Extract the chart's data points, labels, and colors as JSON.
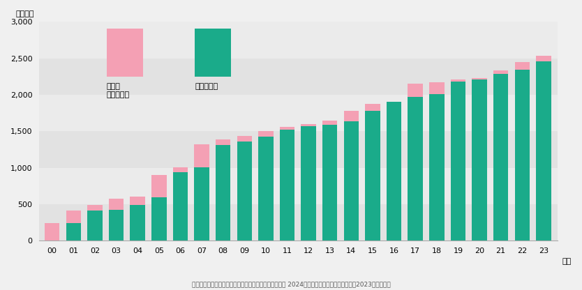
{
  "years": [
    "00",
    "01",
    "02",
    "03",
    "04",
    "05",
    "06",
    "07",
    "08",
    "09",
    "10",
    "11",
    "12",
    "13",
    "14",
    "15",
    "16",
    "17",
    "18",
    "19",
    "20",
    "21",
    "22",
    "23"
  ],
  "green_values": [
    0,
    240,
    410,
    420,
    490,
    590,
    940,
    1010,
    1310,
    1360,
    1430,
    1520,
    1570,
    1590,
    1640,
    1780,
    1900,
    1970,
    2010,
    2180,
    2210,
    2290,
    2340,
    2460
  ],
  "pink_values": [
    240,
    175,
    80,
    160,
    115,
    310,
    70,
    310,
    75,
    80,
    70,
    40,
    30,
    60,
    140,
    100,
    0,
    180,
    165,
    30,
    15,
    40,
    110,
    80
  ],
  "color_green": "#1aab8a",
  "color_pink": "#f4a0b4",
  "ylabel": "（億円）",
  "xlabel_suffix": "年度",
  "yticks": [
    0,
    500,
    1000,
    1500,
    2000,
    2500,
    3000
  ],
  "ylim": [
    0,
    3000
  ],
  "legend_label_pink": "投資額\n（年度別）",
  "legend_label_green": "のべ投資額",
  "source_text": "資料：日本製紙連合会　カーボンニュートラル行動計画 2024年度フォローアップ調査結果（2023年度実績）",
  "background_color": "#f0f0f0",
  "bar_width": 0.7,
  "band_colors": [
    "#e8e8e8",
    "#f0f0f0"
  ],
  "band_ranges": [
    [
      0,
      500
    ],
    [
      500,
      1000
    ],
    [
      1000,
      1500
    ],
    [
      1500,
      2000
    ],
    [
      2000,
      2500
    ],
    [
      2500,
      3000
    ]
  ]
}
